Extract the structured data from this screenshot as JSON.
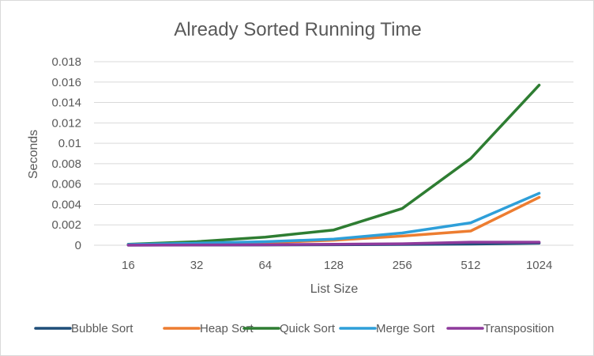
{
  "chart_data": {
    "type": "line",
    "title": "Already Sorted Running Time",
    "xlabel": "List Size",
    "ylabel": "Seconds",
    "categories": [
      "16",
      "32",
      "64",
      "128",
      "256",
      "512",
      "1024"
    ],
    "yticks": [
      "0",
      "0.002",
      "0.004",
      "0.006",
      "0.008",
      "0.01",
      "0.012",
      "0.014",
      "0.016",
      "0.018"
    ],
    "ylim": [
      0,
      0.018
    ],
    "grid": "horizontal",
    "legend_position": "bottom",
    "series": [
      {
        "name": "Bubble Sort",
        "color": "#1f4e79",
        "values": [
          1e-05,
          2e-05,
          3e-05,
          5e-05,
          8e-05,
          0.00012,
          0.0002
        ]
      },
      {
        "name": "Heap Sort",
        "color": "#ed7d31",
        "values": [
          5e-05,
          0.0001,
          0.00025,
          0.0005,
          0.0009,
          0.0014,
          0.0047
        ]
      },
      {
        "name": "Quick Sort",
        "color": "#2e7d32",
        "values": [
          0.0001,
          0.00035,
          0.0008,
          0.0015,
          0.0036,
          0.0085,
          0.0157
        ]
      },
      {
        "name": "Merge Sort",
        "color": "#2e9fd9",
        "values": [
          8e-05,
          0.0002,
          0.00035,
          0.0006,
          0.0012,
          0.0022,
          0.0051
        ]
      },
      {
        "name": "Transposition",
        "color": "#8e3a9c",
        "values": [
          1e-05,
          3e-05,
          5e-05,
          0.0001,
          0.00015,
          0.0003,
          0.0003
        ]
      }
    ]
  }
}
